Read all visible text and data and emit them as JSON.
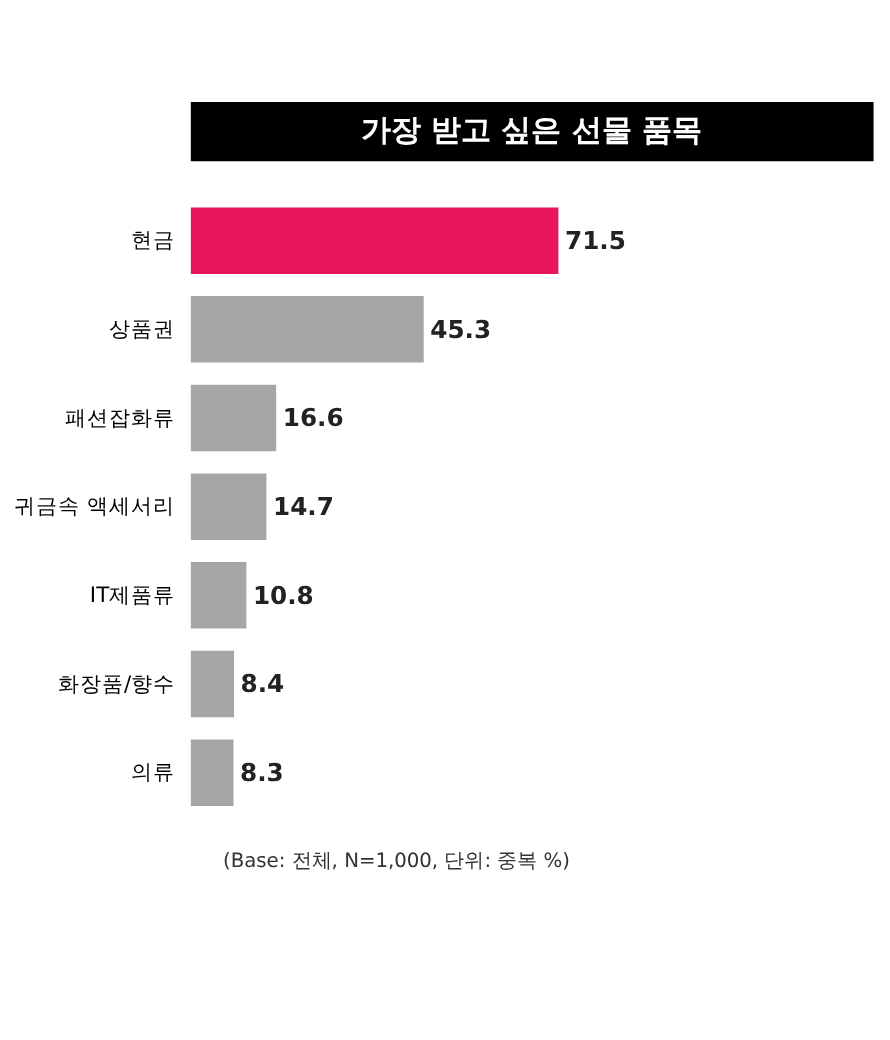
{
  "chart_data": {
    "type": "bar",
    "orientation": "horizontal",
    "title": "가장 받고 싶은 선물 품목",
    "categories": [
      "현금",
      "상품권",
      "패션잡화류",
      "귀금속 액세서리",
      "IT제품류",
      "화장품/향수",
      "의류"
    ],
    "values": [
      71.5,
      45.3,
      16.6,
      14.7,
      10.8,
      8.4,
      8.3
    ],
    "colors": [
      "#e8175d",
      "#a6a6a6",
      "#a6a6a6",
      "#a6a6a6",
      "#a6a6a6",
      "#a6a6a6",
      "#a6a6a6"
    ],
    "data_labels": true,
    "annotations": [
      "(Base: 전체, N=1,000, 단위: 중복 %)"
    ]
  }
}
